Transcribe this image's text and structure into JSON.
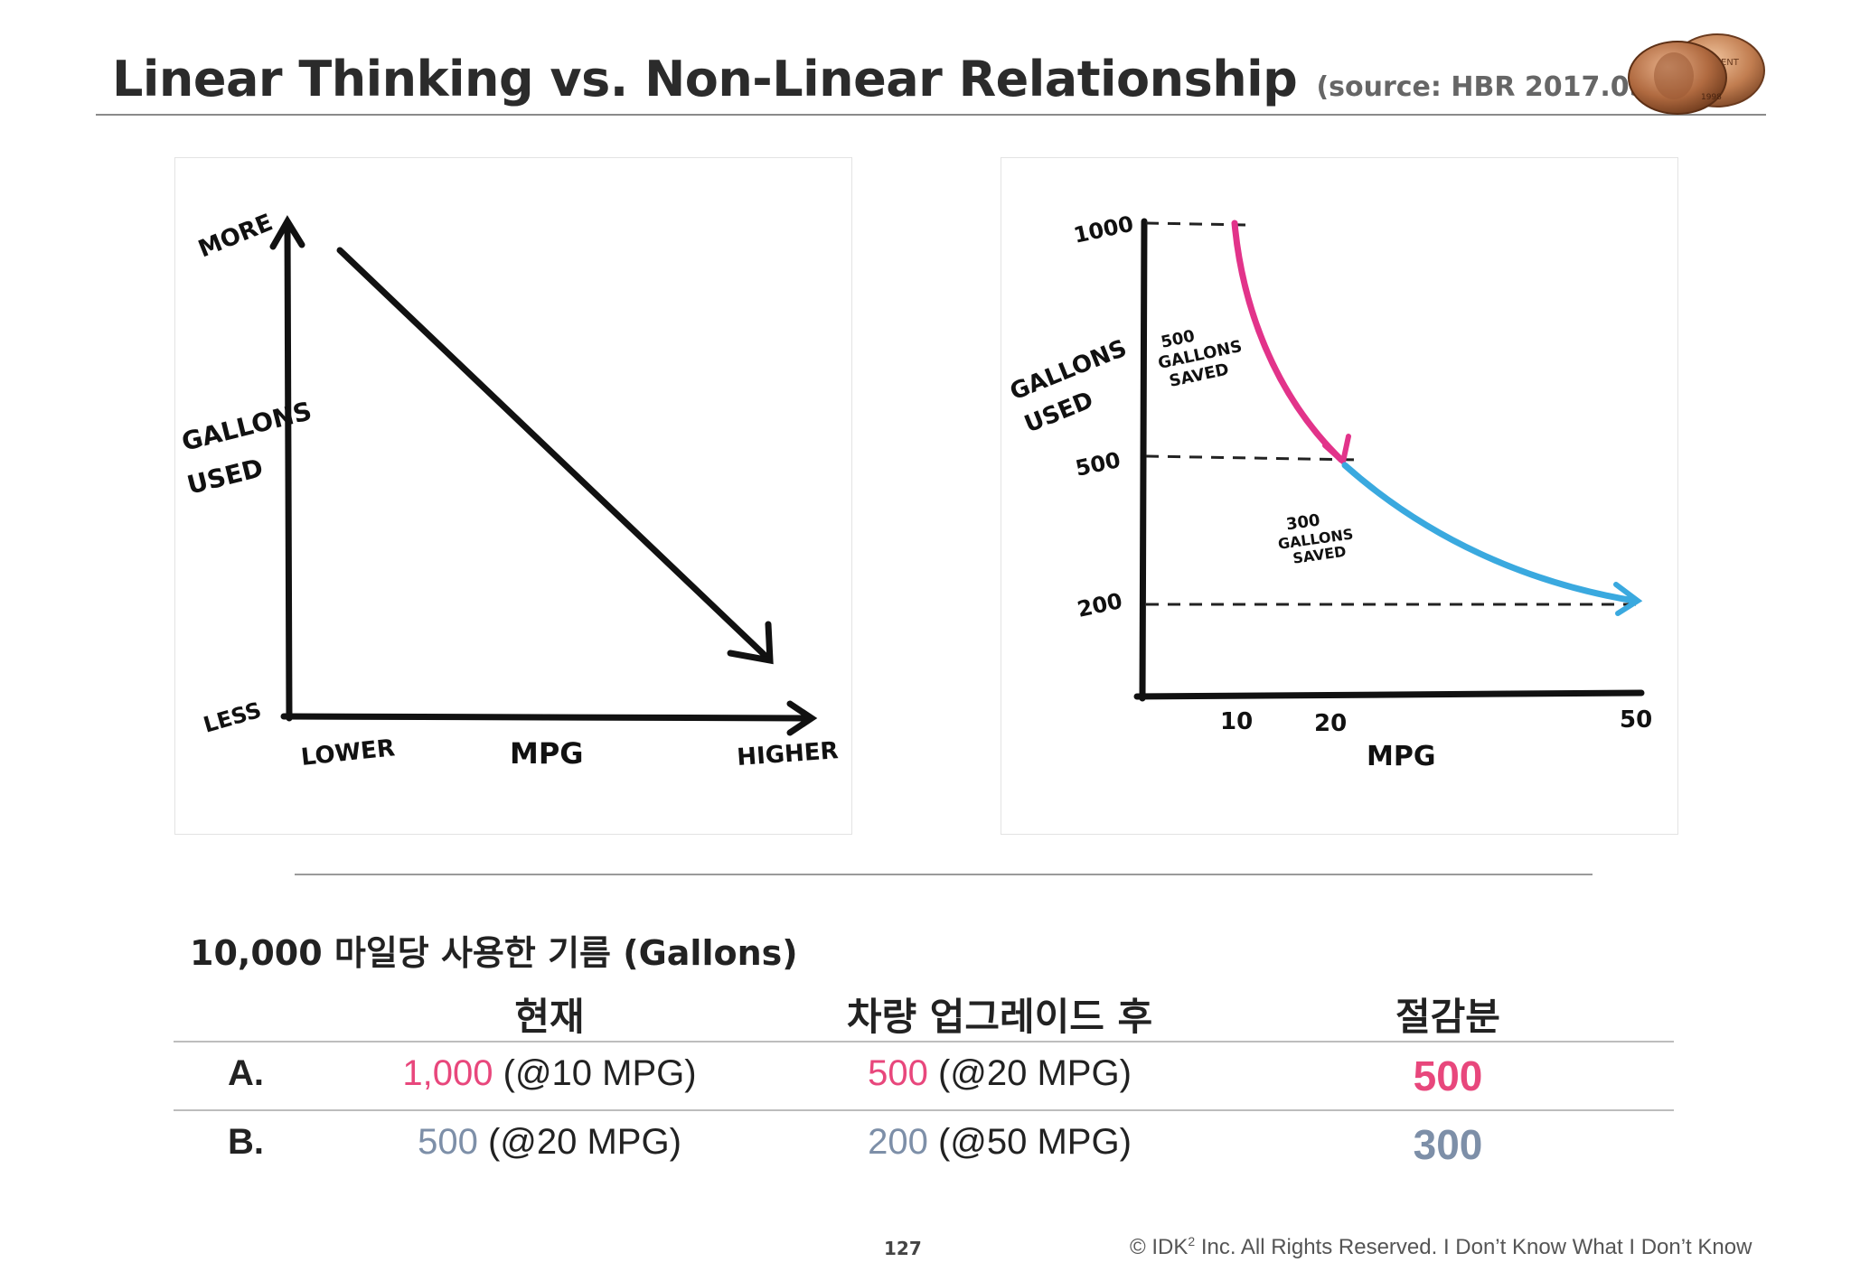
{
  "slide": {
    "title": "Linear Thinking vs. Non-Linear Relationship",
    "source": "(source: HBR 2017.05월호)",
    "coin_text": "ONE CENT",
    "coin_date": "1998"
  },
  "left_chart": {
    "y_top_label": "MORE",
    "y_axis_label_1": "GALLONS",
    "y_axis_label_2": "USED",
    "y_bottom_label": "LESS",
    "x_left_label": "LOWER",
    "x_axis_label": "MPG",
    "x_right_label": "HIGHER"
  },
  "right_chart": {
    "y_ticks": [
      "1000",
      "500",
      "200"
    ],
    "x_ticks": [
      "10",
      "20",
      "50"
    ],
    "y_axis_label_1": "GALLONS",
    "y_axis_label_2": "USED",
    "x_axis_label": "MPG",
    "note_1": [
      "500",
      "GALLONS",
      "SAVED"
    ],
    "note_2": [
      "300",
      "GALLONS",
      "SAVED"
    ],
    "colors": {
      "segment_1": "#e2338a",
      "segment_2": "#3aa9df"
    }
  },
  "table": {
    "title": "10,000 마일당 사용한 기름 (Gallons)",
    "headers": [
      "현재",
      "차량 업그레이드 후",
      "절감분"
    ],
    "rows": [
      {
        "label": "A.",
        "current_value": "1,000",
        "current_note": " (@10 MPG)",
        "after_value": "500",
        "after_note": " (@20 MPG)",
        "saved": "500"
      },
      {
        "label": "B.",
        "current_value": "500",
        "current_note": " (@20 MPG)",
        "after_value": "200",
        "after_note": " (@50 MPG)",
        "saved": "300"
      }
    ],
    "colors": {
      "row_a": "#e8477c",
      "row_b": "#7d8fa8"
    }
  },
  "footer": {
    "page_number": "127",
    "copyright_prefix": "© IDK",
    "copyright_sup": "2",
    "copyright_rest": " Inc. All Rights Reserved.  I Don’t Know What I Don’t Know"
  }
}
